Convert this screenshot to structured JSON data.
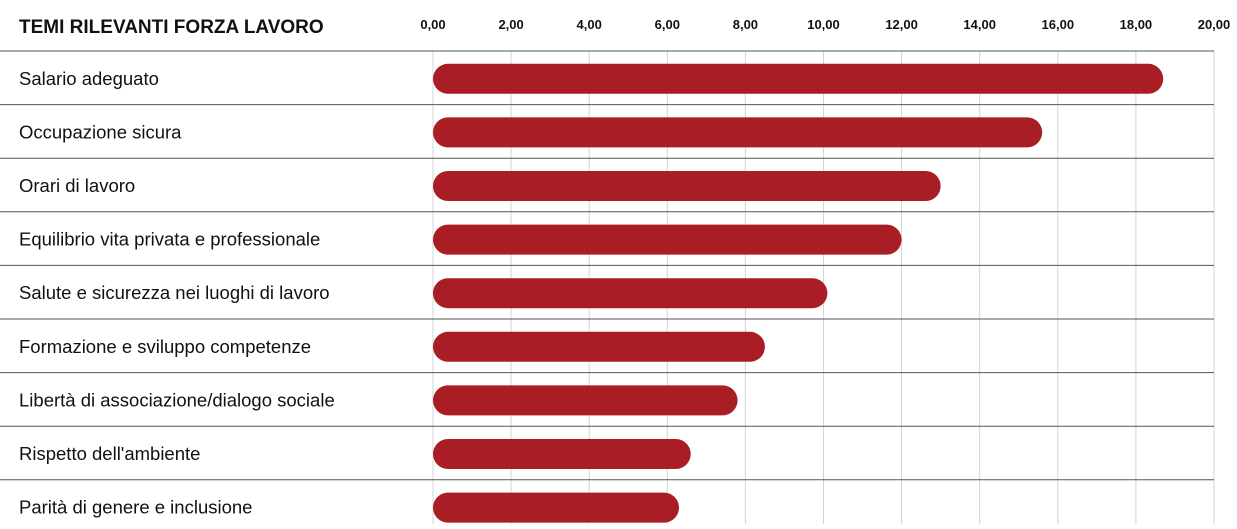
{
  "chart_data": {
    "type": "bar",
    "orientation": "horizontal",
    "title": "TEMI RILEVANTI FORZA LAVORO",
    "categories": [
      "Salario adeguato",
      "Occupazione sicura",
      "Orari di lavoro",
      "Equilibrio vita privata e professionale",
      "Salute e sicurezza nei luoghi di lavoro",
      "Formazione e sviluppo competenze",
      "Libertà di associazione/dialogo sociale",
      "Rispetto dell'ambiente",
      "Parità di genere e inclusione"
    ],
    "values": [
      18.7,
      15.6,
      13.0,
      12.0,
      10.1,
      8.5,
      7.8,
      6.6,
      6.3
    ],
    "xlim": [
      0,
      20
    ],
    "xticks": [
      "0,00",
      "2,00",
      "4,00",
      "6,00",
      "8,00",
      "10,00",
      "12,00",
      "14,00",
      "16,00",
      "18,00",
      "20,00"
    ],
    "xlabel": "",
    "ylabel": "",
    "legend": "none",
    "grid": "vertical",
    "bar_color": "#a91e24",
    "grid_color": "#d4d4d4",
    "row_divider_color": "#555555"
  }
}
